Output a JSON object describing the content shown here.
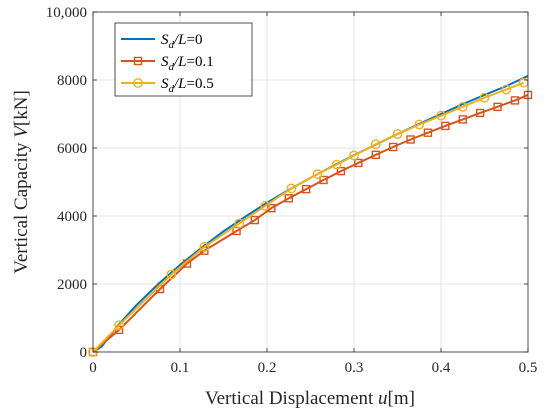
{
  "chart_data": {
    "type": "line",
    "title": "",
    "xlabel": {
      "text": "Vertical Displacement",
      "var": "u",
      "unit": "[m]"
    },
    "ylabel": {
      "text": "Vertical Capacity",
      "var": "V",
      "unit": "[kN]"
    },
    "xlim": [
      0,
      0.5
    ],
    "ylim": [
      0,
      10000
    ],
    "x_ticks": [
      0,
      0.1,
      0.2,
      0.3,
      0.4,
      0.5
    ],
    "x_tick_labels": [
      "0",
      "0.1",
      "0.2",
      "0.3",
      "0.4",
      "0.5"
    ],
    "y_ticks": [
      0,
      2000,
      4000,
      6000,
      8000,
      10000
    ],
    "y_tick_labels": [
      "0",
      "2000",
      "4000",
      "6000",
      "8000",
      "10,000"
    ],
    "grid": true,
    "legend_position": "top-left",
    "series": [
      {
        "name": "S_d/L=0",
        "legend": {
          "s": "S",
          "sub": "d",
          "rest": "/L",
          "val": "=0"
        },
        "color": "#0072BD",
        "marker": "none",
        "x": [
          0,
          0.01,
          0.03,
          0.05,
          0.075,
          0.1,
          0.125,
          0.15,
          0.175,
          0.2,
          0.225,
          0.25,
          0.275,
          0.3,
          0.325,
          0.35,
          0.375,
          0.4,
          0.425,
          0.45,
          0.475,
          0.5
        ],
        "y": [
          0,
          160,
          820,
          1380,
          2000,
          2560,
          3070,
          3550,
          3980,
          4390,
          4770,
          5120,
          5460,
          5790,
          6100,
          6410,
          6710,
          7000,
          7290,
          7560,
          7820,
          8120
        ]
      },
      {
        "name": "S_d/L=0.1",
        "legend": {
          "s": "S",
          "sub": "d",
          "rest": "/L",
          "val": "=0.1"
        },
        "color": "#D95319",
        "marker": "square",
        "x": [
          0,
          0.03,
          0.077,
          0.108,
          0.128,
          0.165,
          0.186,
          0.205,
          0.225,
          0.245,
          0.265,
          0.285,
          0.305,
          0.325,
          0.345,
          0.365,
          0.385,
          0.405,
          0.425,
          0.445,
          0.465,
          0.485,
          0.5
        ],
        "y": [
          0,
          650,
          1850,
          2600,
          2980,
          3560,
          3880,
          4230,
          4520,
          4790,
          5060,
          5320,
          5560,
          5800,
          6030,
          6250,
          6450,
          6650,
          6840,
          7030,
          7210,
          7400,
          7560
        ]
      },
      {
        "name": "S_d/L=0.5",
        "legend": {
          "s": "S",
          "sub": "d",
          "rest": "/L",
          "val": "=0.5"
        },
        "color": "#EDB120",
        "marker": "circle",
        "x": [
          0,
          0.03,
          0.09,
          0.128,
          0.168,
          0.198,
          0.228,
          0.258,
          0.28,
          0.3,
          0.325,
          0.35,
          0.375,
          0.4,
          0.425,
          0.45,
          0.475,
          0.495
        ],
        "y": [
          0,
          790,
          2280,
          3090,
          3780,
          4300,
          4810,
          5230,
          5510,
          5780,
          6110,
          6410,
          6690,
          6950,
          7210,
          7480,
          7720,
          7920
        ]
      }
    ]
  }
}
